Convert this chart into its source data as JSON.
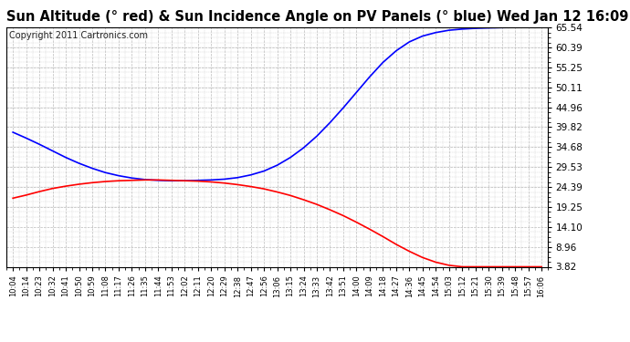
{
  "title": "Sun Altitude (° red) & Sun Incidence Angle on PV Panels (° blue) Wed Jan 12 16:09",
  "copyright": "Copyright 2011 Cartronics.com",
  "ymin": 3.82,
  "ymax": 65.54,
  "yticks": [
    3.82,
    8.96,
    14.1,
    19.25,
    24.39,
    29.53,
    34.68,
    39.82,
    44.96,
    50.11,
    55.25,
    60.39,
    65.54
  ],
  "background_color": "#ffffff",
  "grid_color": "#bbbbbb",
  "title_fontsize": 10.5,
  "copyright_fontsize": 7,
  "x_labels": [
    "10:04",
    "10:14",
    "10:23",
    "10:32",
    "10:41",
    "10:50",
    "10:59",
    "11:08",
    "11:17",
    "11:26",
    "11:35",
    "11:44",
    "11:53",
    "12:02",
    "12:11",
    "12:20",
    "12:29",
    "12:38",
    "12:47",
    "12:56",
    "13:06",
    "13:15",
    "13:24",
    "13:33",
    "13:42",
    "13:51",
    "14:00",
    "14:09",
    "14:18",
    "14:27",
    "14:36",
    "14:45",
    "14:54",
    "15:03",
    "15:12",
    "15:21",
    "15:30",
    "15:39",
    "15:48",
    "15:57",
    "16:06"
  ],
  "blue_y": [
    38.5,
    37.0,
    35.4,
    33.7,
    32.0,
    30.5,
    29.2,
    28.1,
    27.3,
    26.7,
    26.3,
    26.1,
    26.0,
    26.0,
    26.1,
    26.2,
    26.4,
    26.8,
    27.5,
    28.5,
    30.0,
    32.0,
    34.5,
    37.5,
    41.0,
    44.8,
    48.8,
    52.8,
    56.5,
    59.5,
    61.8,
    63.3,
    64.2,
    64.8,
    65.1,
    65.3,
    65.4,
    65.48,
    65.52,
    65.53,
    65.54
  ],
  "red_y": [
    21.5,
    22.3,
    23.2,
    24.0,
    24.6,
    25.1,
    25.5,
    25.8,
    26.0,
    26.1,
    26.2,
    26.2,
    26.1,
    26.0,
    25.9,
    25.7,
    25.4,
    25.0,
    24.5,
    23.9,
    23.1,
    22.2,
    21.1,
    19.9,
    18.5,
    17.0,
    15.3,
    13.5,
    11.6,
    9.6,
    7.8,
    6.2,
    5.0,
    4.2,
    3.82,
    3.82,
    3.82,
    3.82,
    3.82,
    3.82,
    3.82
  ],
  "blue_color": "#0000ff",
  "red_color": "#ff0000",
  "line_width": 1.2
}
